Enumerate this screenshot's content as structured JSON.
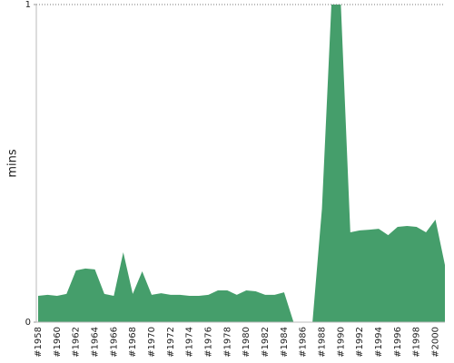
{
  "chart_data": {
    "type": "area",
    "y_label": "mins",
    "categories": [
      "#1958",
      null,
      "#1960",
      null,
      "#1962",
      null,
      "#1964",
      null,
      "#1966",
      null,
      "#1968",
      null,
      "#1970",
      null,
      "#1972",
      null,
      "#1974",
      null,
      "#1976",
      null,
      "#1978",
      null,
      "#1980",
      null,
      "#1982",
      null,
      "#1984",
      null,
      "#1986",
      null,
      "#1988",
      null,
      "#1990",
      null,
      "#1992",
      null,
      "#1994",
      null,
      "#1996",
      null,
      "#1998",
      null,
      "#2000",
      null
    ],
    "values": [
      0.083,
      0.086,
      0.083,
      0.089,
      0.163,
      0.169,
      0.166,
      0.089,
      0.083,
      0.22,
      0.089,
      0.16,
      0.086,
      0.091,
      0.086,
      0.086,
      0.083,
      0.083,
      0.086,
      0.1,
      0.1,
      0.086,
      0.1,
      0.097,
      0.086,
      0.086,
      0.094,
      0,
      0,
      0,
      0.357,
      1,
      1,
      0.283,
      0.289,
      0.291,
      0.294,
      0.274,
      0.3,
      0.303,
      0.3,
      0.283,
      0.323,
      0.18
    ],
    "color": "#459e6b",
    "ylim": [
      0,
      1
    ],
    "yticks": [
      0,
      1
    ],
    "grid": true
  }
}
